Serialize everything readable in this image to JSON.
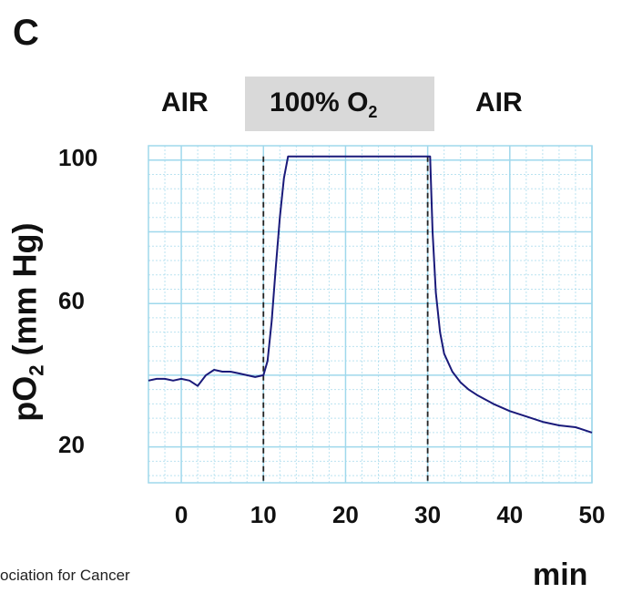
{
  "panel_label": "C",
  "conditions": [
    {
      "label": "AIR"
    },
    {
      "label": "100% O",
      "sub": "2"
    },
    {
      "label": "AIR"
    }
  ],
  "credit_text": "ociation for Cancer",
  "chart_data": {
    "type": "line",
    "ylabel_main": "pO",
    "ylabel_sub": "2",
    "ylabel_rest": " (mm Hg)",
    "xlabel": "min",
    "x_ticks": [
      0,
      10,
      20,
      30,
      40,
      50
    ],
    "y_ticks": [
      20,
      60,
      100
    ],
    "xlim": [
      -4,
      50
    ],
    "ylim": [
      10,
      104
    ],
    "grid": true,
    "line_color": "#1a1a7a",
    "grid_color": "#9fd8ec",
    "gas_switch_minutes": [
      10,
      30
    ],
    "series": [
      {
        "x": [
          -4,
          -3,
          -2,
          -1,
          0,
          1,
          2,
          3,
          4,
          5,
          6,
          7,
          8,
          9,
          10,
          10.5,
          11,
          11.5,
          12,
          12.5,
          13,
          13.5,
          14,
          16,
          18,
          20,
          22,
          24,
          26,
          28,
          30,
          30.3,
          30.6,
          31,
          31.5,
          32,
          33,
          34,
          35,
          36,
          38,
          40,
          42,
          44,
          46,
          48,
          50
        ],
        "y": [
          38.5,
          39,
          39,
          38.5,
          39,
          38.5,
          37,
          40,
          41.5,
          41,
          41,
          40.5,
          40,
          39.5,
          40,
          44,
          55,
          70,
          84,
          95,
          101,
          101,
          101,
          101,
          101,
          101,
          101,
          101,
          101,
          101,
          101,
          101,
          80,
          63,
          52,
          46,
          41,
          38,
          36,
          34.5,
          32,
          30,
          28.5,
          27,
          26,
          25.5,
          24
        ]
      }
    ]
  }
}
